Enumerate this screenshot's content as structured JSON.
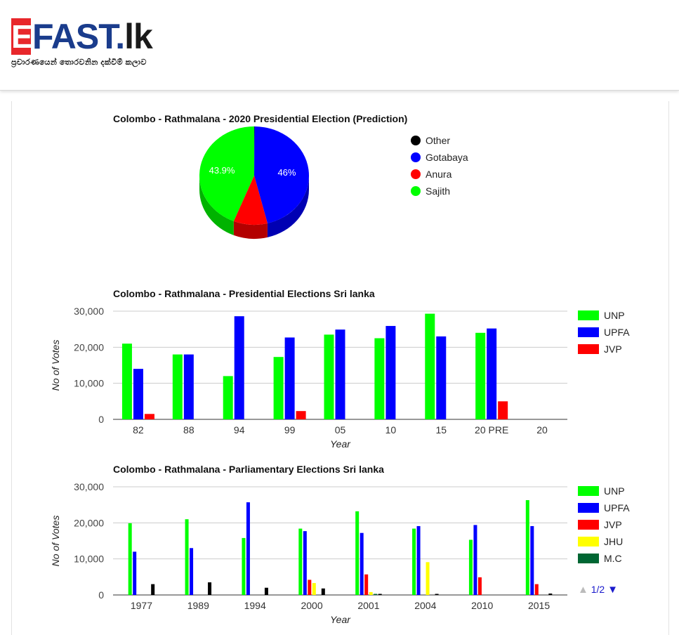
{
  "header": {
    "logo_e": "E",
    "logo_fast": "FAST.",
    "logo_lk": "lk",
    "tagline": "ප්‍රචාරණයෙන් තොරවනින දක්වීම් කලාව"
  },
  "chart_data": [
    {
      "type": "pie",
      "title": "Colombo - Rathmalana - 2020 Presidential Election (Prediction)",
      "slices": [
        {
          "name": "Other",
          "value": 0.1,
          "color": "#000000",
          "label": ""
        },
        {
          "name": "Gotabaya",
          "value": 46.0,
          "color": "#0000ff",
          "label": "46%"
        },
        {
          "name": "Anura",
          "value": 10.0,
          "color": "#ff0000",
          "label": ""
        },
        {
          "name": "Sajith",
          "value": 43.9,
          "color": "#00ff00",
          "label": "43.9%"
        }
      ],
      "legend": "right"
    },
    {
      "type": "bar",
      "title": "Colombo - Rathmalana - Presidential Elections Sri lanka",
      "xlabel": "Year",
      "ylabel": "No of Votes",
      "ylim": [
        0,
        30000
      ],
      "yticks": [
        "0",
        "10,000",
        "20,000",
        "30,000"
      ],
      "categories": [
        "82",
        "88",
        "94",
        "99",
        "05",
        "10",
        "15",
        "20 PRE",
        "20"
      ],
      "series": [
        {
          "name": "UNP",
          "color": "#00ff00",
          "values": [
            21000,
            18000,
            12000,
            17300,
            23500,
            22500,
            29300,
            24000,
            0
          ]
        },
        {
          "name": "UPFA",
          "color": "#0000ff",
          "values": [
            14000,
            18000,
            28600,
            22700,
            24900,
            25900,
            23000,
            25200,
            0
          ]
        },
        {
          "name": "JVP",
          "color": "#ff0000",
          "values": [
            1500,
            0,
            0,
            2300,
            0,
            0,
            0,
            5000,
            0
          ]
        }
      ],
      "legend": "right",
      "grid": true
    },
    {
      "type": "bar",
      "title": "Colombo - Rathmalana - Parliamentary Elections Sri lanka",
      "xlabel": "Year",
      "ylabel": "No of Votes",
      "ylim": [
        0,
        30000
      ],
      "yticks": [
        "0",
        "10,000",
        "20,000",
        "30,000"
      ],
      "categories": [
        "1977",
        "1989",
        "1994",
        "2000",
        "2001",
        "2004",
        "2010",
        "2015"
      ],
      "series": [
        {
          "name": "UNP",
          "color": "#00ff00",
          "values": [
            19900,
            21000,
            15800,
            18400,
            23200,
            18400,
            15300,
            26300
          ]
        },
        {
          "name": "UPFA",
          "color": "#0000ff",
          "values": [
            12000,
            13000,
            25700,
            17700,
            17200,
            19100,
            19400,
            19100
          ]
        },
        {
          "name": "JVP",
          "color": "#ff0000",
          "values": [
            0,
            0,
            0,
            4200,
            5700,
            0,
            4900,
            3000
          ]
        },
        {
          "name": "JHU",
          "color": "#ffff00",
          "values": [
            0,
            0,
            0,
            3300,
            800,
            9100,
            0,
            0
          ]
        },
        {
          "name": "M.C",
          "color": "#006633",
          "values": [
            0,
            0,
            0,
            0,
            300,
            0,
            0,
            0
          ]
        },
        {
          "name": "Other",
          "color": "#000000",
          "values": [
            3000,
            3500,
            2000,
            1800,
            300,
            300,
            0,
            400
          ]
        }
      ],
      "legend": "right",
      "legend_visible": [
        "UNP",
        "UPFA",
        "JVP",
        "JHU",
        "M.C"
      ],
      "grid": true
    }
  ],
  "pager": {
    "up": "▲",
    "page": "1/2",
    "down": "▼"
  }
}
